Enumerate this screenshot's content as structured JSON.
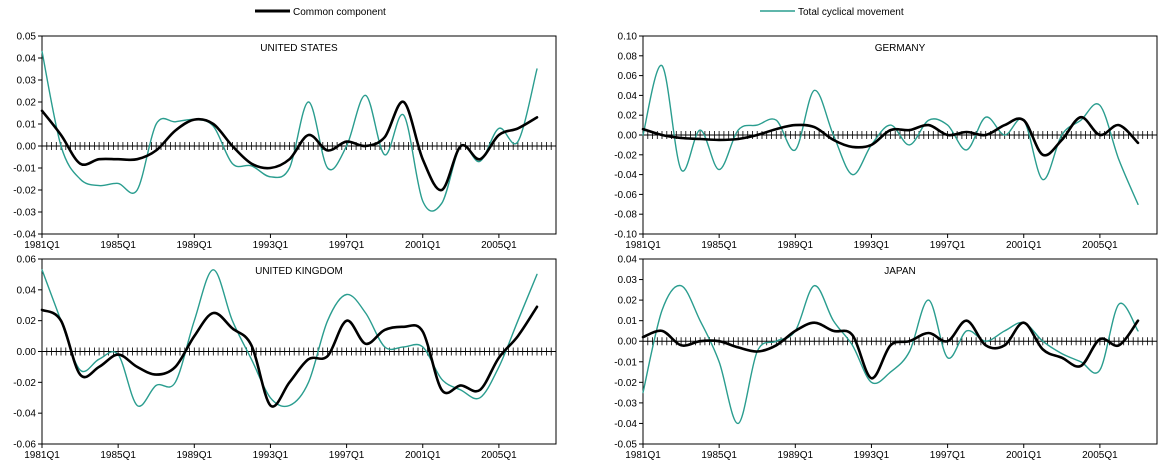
{
  "legend": {
    "common_label": "Common component",
    "total_label": "Total cyclical movement",
    "common_color": "#000000",
    "total_color": "#2a9d8f"
  },
  "chart_data": [
    {
      "type": "line",
      "title": "UNITED STATES",
      "xlabel": "",
      "ylabel": "",
      "x_start": 1981.0,
      "x_end": 2008.0,
      "x_ticks": [
        1981,
        1985,
        1989,
        1993,
        1997,
        2001,
        2005
      ],
      "x_tick_labels": [
        "1981Q1",
        "1985Q1",
        "1989Q1",
        "1993Q1",
        "1997Q1",
        "2001Q1",
        "2005Q1"
      ],
      "ylim": [
        -0.04,
        0.05
      ],
      "y_ticks": [
        -0.04,
        -0.03,
        -0.02,
        -0.01,
        0.0,
        0.01,
        0.02,
        0.03,
        0.04,
        0.05
      ],
      "y_tick_labels": [
        "-0.04",
        "-0.03",
        "-0.02",
        "-0.01",
        "0.00",
        "0.01",
        "0.02",
        "0.03",
        "0.04",
        "0.05"
      ],
      "series": [
        {
          "name": "Common component",
          "x": [
            1981,
            1982,
            1983,
            1984,
            1985,
            1986,
            1987,
            1988,
            1989,
            1990,
            1991,
            1992,
            1993,
            1994,
            1995,
            1996,
            1997,
            1998,
            1999,
            2000,
            2001,
            2002,
            2003,
            2004,
            2005,
            2006,
            2007
          ],
          "values": [
            0.016,
            0.005,
            -0.008,
            -0.006,
            -0.006,
            -0.006,
            -0.002,
            0.007,
            0.012,
            0.01,
            0.0,
            -0.008,
            -0.01,
            -0.006,
            0.005,
            -0.002,
            0.002,
            0.0,
            0.004,
            0.02,
            -0.006,
            -0.02,
            0.0,
            -0.006,
            0.005,
            0.008,
            0.013
          ]
        },
        {
          "name": "Total cyclical movement",
          "x": [
            1981,
            1982,
            1983,
            1984,
            1985,
            1986,
            1987,
            1988,
            1989,
            1990,
            1991,
            1992,
            1993,
            1994,
            1995,
            1996,
            1997,
            1998,
            1999,
            2000,
            2001,
            2002,
            2003,
            2004,
            2005,
            2006,
            2007
          ],
          "values": [
            0.043,
            0.0,
            -0.015,
            -0.018,
            -0.017,
            -0.02,
            0.01,
            0.011,
            0.012,
            0.009,
            -0.008,
            -0.009,
            -0.014,
            -0.01,
            0.02,
            -0.01,
            0.0,
            0.023,
            -0.004,
            0.014,
            -0.025,
            -0.026,
            0.0,
            -0.007,
            0.008,
            0.002,
            0.035
          ]
        }
      ]
    },
    {
      "type": "line",
      "title": "GERMANY",
      "xlabel": "",
      "ylabel": "",
      "x_start": 1981.0,
      "x_end": 2008.0,
      "x_ticks": [
        1981,
        1985,
        1989,
        1993,
        1997,
        2001,
        2005
      ],
      "x_tick_labels": [
        "1981Q1",
        "1985Q1",
        "1989Q1",
        "1993Q1",
        "1997Q1",
        "2001Q1",
        "2005Q1"
      ],
      "ylim": [
        -0.1,
        0.1
      ],
      "y_ticks": [
        -0.1,
        -0.08,
        -0.06,
        -0.04,
        -0.02,
        0.0,
        0.02,
        0.04,
        0.06,
        0.08,
        0.1
      ],
      "y_tick_labels": [
        "-0.10",
        "-0.08",
        "-0.06",
        "-0.04",
        "-0.02",
        "0.00",
        "0.02",
        "0.04",
        "0.06",
        "0.08",
        "0.10"
      ],
      "series": [
        {
          "name": "Common component",
          "x": [
            1981,
            1982,
            1983,
            1984,
            1985,
            1986,
            1987,
            1988,
            1989,
            1990,
            1991,
            1992,
            1993,
            1994,
            1995,
            1996,
            1997,
            1998,
            1999,
            2000,
            2001,
            2002,
            2003,
            2004,
            2005,
            2006,
            2007
          ],
          "values": [
            0.006,
            0.0,
            -0.003,
            -0.004,
            -0.005,
            -0.004,
            0.0,
            0.006,
            0.01,
            0.008,
            -0.005,
            -0.012,
            -0.01,
            0.005,
            0.005,
            0.01,
            0.0,
            0.003,
            0.0,
            0.01,
            0.015,
            -0.02,
            -0.005,
            0.018,
            0.0,
            0.01,
            -0.008
          ]
        },
        {
          "name": "Total cyclical movement",
          "x": [
            1981,
            1982,
            1983,
            1984,
            1985,
            1986,
            1987,
            1988,
            1989,
            1990,
            1991,
            1992,
            1993,
            1994,
            1995,
            1996,
            1997,
            1998,
            1999,
            2000,
            2001,
            2002,
            2003,
            2004,
            2005,
            2006,
            2007
          ],
          "values": [
            0.0,
            0.07,
            -0.035,
            0.005,
            -0.035,
            0.005,
            0.01,
            0.015,
            -0.015,
            0.045,
            0.0,
            -0.04,
            -0.01,
            0.01,
            -0.01,
            0.015,
            0.01,
            -0.015,
            0.018,
            0.0,
            0.015,
            -0.045,
            0.0,
            0.015,
            0.03,
            -0.025,
            -0.07
          ]
        }
      ]
    },
    {
      "type": "line",
      "title": "UNITED KINGDOM",
      "xlabel": "",
      "ylabel": "",
      "x_start": 1981.0,
      "x_end": 2008.0,
      "x_ticks": [
        1981,
        1985,
        1989,
        1993,
        1997,
        2001,
        2005
      ],
      "x_tick_labels": [
        "1981Q1",
        "1985Q1",
        "1989Q1",
        "1993Q1",
        "1997Q1",
        "2001Q1",
        "2005Q1"
      ],
      "ylim": [
        -0.06,
        0.06
      ],
      "y_ticks": [
        -0.06,
        -0.04,
        -0.02,
        0.0,
        0.02,
        0.04,
        0.06
      ],
      "y_tick_labels": [
        "-0.06",
        "-0.04",
        "-0.02",
        "0.00",
        "0.02",
        "0.04",
        "0.06"
      ],
      "series": [
        {
          "name": "Common component",
          "x": [
            1981,
            1982,
            1983,
            1984,
            1985,
            1986,
            1987,
            1988,
            1989,
            1990,
            1991,
            1992,
            1993,
            1994,
            1995,
            1996,
            1997,
            1998,
            1999,
            2000,
            2001,
            2002,
            2003,
            2004,
            2005,
            2006,
            2007
          ],
          "values": [
            0.027,
            0.02,
            -0.015,
            -0.01,
            -0.002,
            -0.01,
            -0.015,
            -0.01,
            0.01,
            0.025,
            0.015,
            0.004,
            -0.035,
            -0.02,
            -0.005,
            -0.003,
            0.02,
            0.005,
            0.014,
            0.016,
            0.013,
            -0.025,
            -0.022,
            -0.025,
            -0.004,
            0.01,
            0.029
          ]
        },
        {
          "name": "Total cyclical movement",
          "x": [
            1981,
            1982,
            1983,
            1984,
            1985,
            1986,
            1987,
            1988,
            1989,
            1990,
            1991,
            1992,
            1993,
            1994,
            1995,
            1996,
            1997,
            1998,
            1999,
            2000,
            2001,
            2002,
            2003,
            2004,
            2005,
            2006,
            2007
          ],
          "values": [
            0.053,
            0.02,
            -0.012,
            -0.005,
            -0.002,
            -0.035,
            -0.022,
            -0.02,
            0.02,
            0.053,
            0.02,
            -0.005,
            -0.03,
            -0.035,
            -0.02,
            0.02,
            0.037,
            0.025,
            0.003,
            0.003,
            0.003,
            -0.018,
            -0.025,
            -0.03,
            -0.01,
            0.02,
            0.05
          ]
        }
      ]
    },
    {
      "type": "line",
      "title": "JAPAN",
      "xlabel": "",
      "ylabel": "",
      "x_start": 1981.0,
      "x_end": 2008.0,
      "x_ticks": [
        1981,
        1985,
        1989,
        1993,
        1997,
        2001,
        2005
      ],
      "x_tick_labels": [
        "1981Q1",
        "1985Q1",
        "1989Q1",
        "1993Q1",
        "1997Q1",
        "2001Q1",
        "2005Q1"
      ],
      "ylim": [
        -0.05,
        0.04
      ],
      "y_ticks": [
        -0.05,
        -0.04,
        -0.03,
        -0.02,
        -0.01,
        0.0,
        0.01,
        0.02,
        0.03,
        0.04
      ],
      "y_tick_labels": [
        "-0.05",
        "-0.04",
        "-0.03",
        "-0.02",
        "-0.01",
        "0.00",
        "0.01",
        "0.02",
        "0.03",
        "0.04"
      ],
      "series": [
        {
          "name": "Common component",
          "x": [
            1981,
            1982,
            1983,
            1984,
            1985,
            1986,
            1987,
            1988,
            1989,
            1990,
            1991,
            1992,
            1993,
            1994,
            1995,
            1996,
            1997,
            1998,
            1999,
            2000,
            2001,
            2002,
            2003,
            2004,
            2005,
            2006,
            2007
          ],
          "values": [
            0.002,
            0.005,
            -0.002,
            0.0,
            0.0,
            -0.003,
            -0.005,
            -0.002,
            0.005,
            0.009,
            0.005,
            0.003,
            -0.018,
            -0.002,
            0.0,
            0.004,
            0.0,
            0.01,
            -0.002,
            -0.002,
            0.009,
            -0.004,
            -0.008,
            -0.012,
            0.001,
            -0.002,
            0.01
          ]
        },
        {
          "name": "Total cyclical movement",
          "x": [
            1981,
            1982,
            1983,
            1984,
            1985,
            1986,
            1987,
            1988,
            1989,
            1990,
            1991,
            1992,
            1993,
            1994,
            1995,
            1996,
            1997,
            1998,
            1999,
            2000,
            2001,
            2002,
            2003,
            2004,
            2005,
            2006,
            2007
          ],
          "values": [
            -0.025,
            0.015,
            0.027,
            0.01,
            -0.01,
            -0.04,
            -0.005,
            0.0,
            0.005,
            0.027,
            0.01,
            -0.002,
            -0.02,
            -0.015,
            -0.005,
            0.02,
            -0.008,
            0.005,
            0.0,
            0.005,
            0.009,
            0.0,
            -0.006,
            -0.01,
            -0.014,
            0.018,
            0.005
          ]
        }
      ]
    }
  ]
}
